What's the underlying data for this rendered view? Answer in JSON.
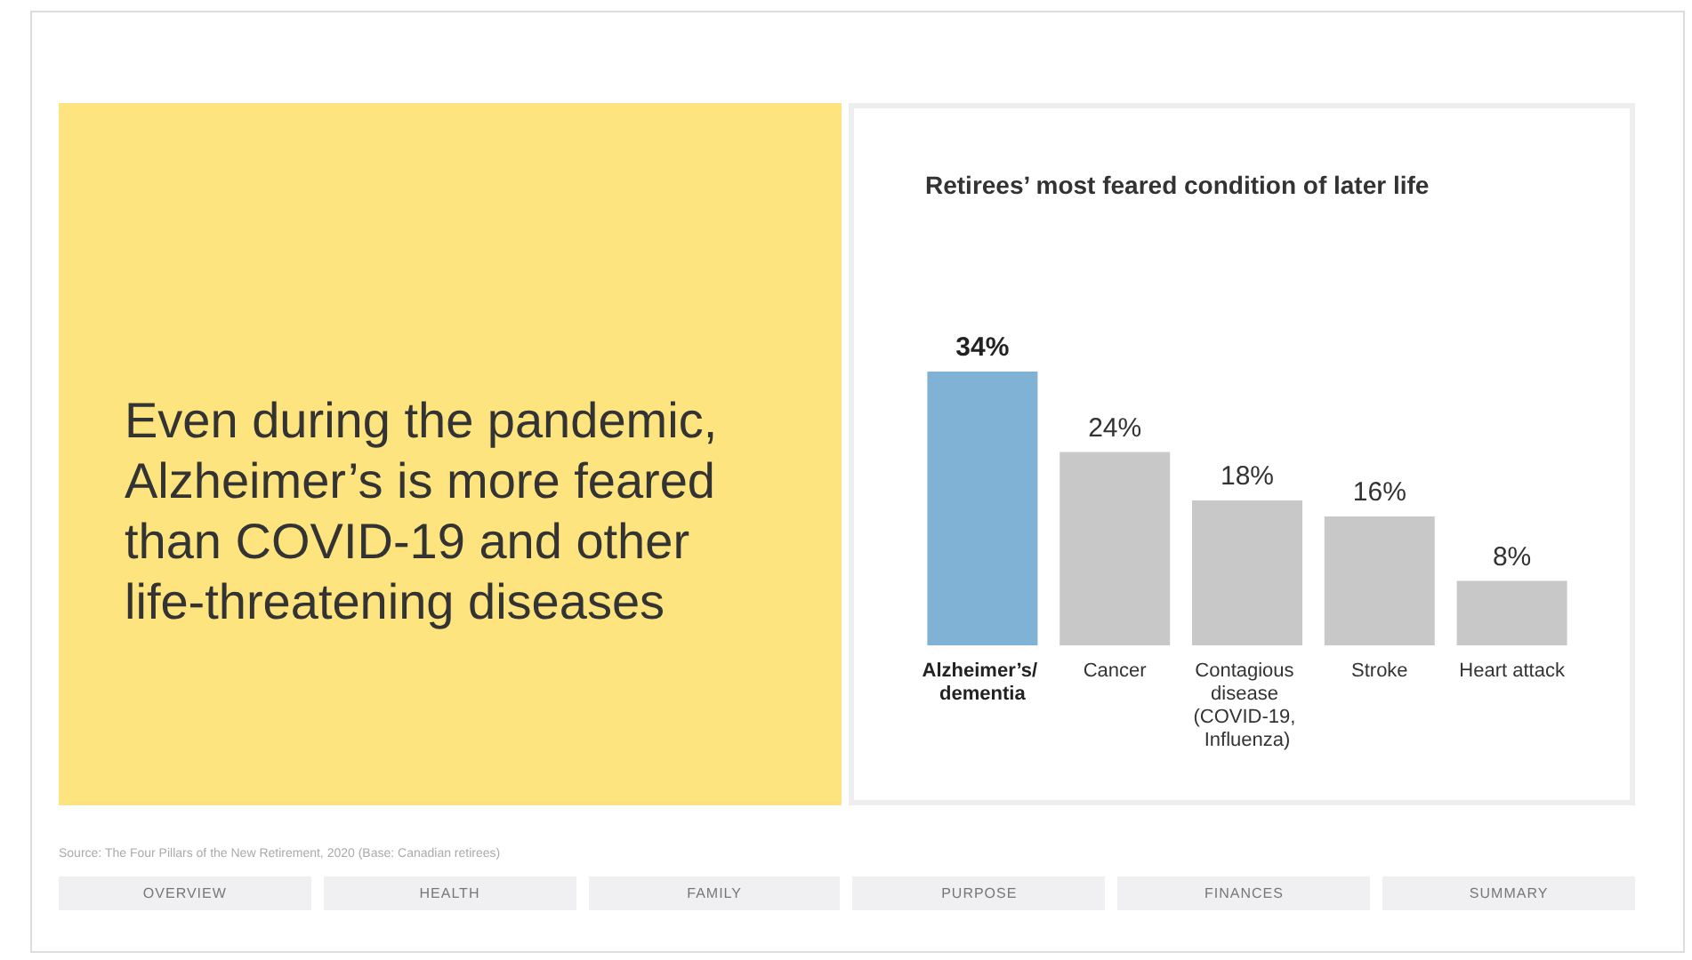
{
  "chart_data": {
    "type": "bar",
    "title": "Retirees’ most feared condition of later life",
    "categories": [
      "Alzheimer’s/ dementia",
      "Cancer",
      "Contagious disease (COVID-19, Influenza)",
      "Stroke",
      "Heart attack"
    ],
    "values": [
      34,
      24,
      18,
      16,
      8
    ],
    "colors": [
      "#7fb2d5",
      "#c8c8c8",
      "#c8c8c8",
      "#c8c8c8",
      "#c8c8c8"
    ],
    "value_labels": [
      "34%",
      "24%",
      "18%",
      "16%",
      "8%"
    ],
    "tick_labels": "x",
    "annotations": [
      "Even during the pandemic, Alzheimer’s is more feared than COVID-19 and other life-threatening diseases",
      "Source: The Four Pillars of the New Retirement, 2020 (Base: Canadian retirees)",
      "OVERVIEW",
      "HEALTH",
      "FAMILY",
      "PURPOSE",
      "FINANCES",
      "SUMMARY"
    ]
  }
}
